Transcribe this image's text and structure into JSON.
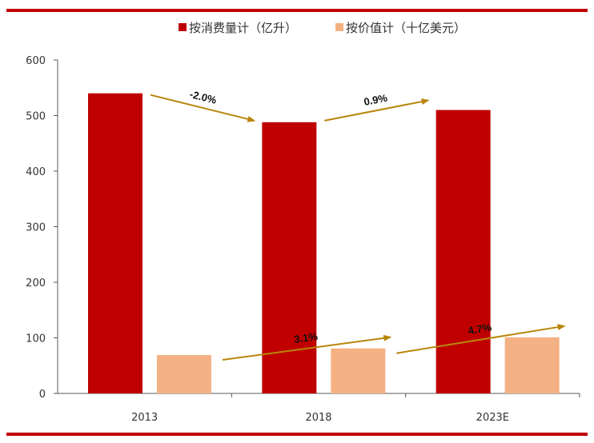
{
  "header": {
    "cut_title": ""
  },
  "colors": {
    "accent_rule": "#c00000",
    "volume": "#c00000",
    "value": "#f4b183",
    "arrow": "#b8860b"
  },
  "chart_data": {
    "type": "bar",
    "categories": [
      "2013",
      "2018",
      "2023E"
    ],
    "series": [
      {
        "name": "按消费量计（亿升）",
        "values": [
          540,
          488,
          510
        ]
      },
      {
        "name": "按价值计（十亿美元）",
        "values": [
          69,
          81,
          101
        ]
      }
    ],
    "ylim": [
      0,
      600
    ],
    "yticks": [
      0,
      100,
      200,
      300,
      400,
      500,
      600
    ],
    "legend_position": "top",
    "grid": false,
    "annotations": [
      {
        "text": "-2.0%",
        "series": 0,
        "from": 0,
        "to": 1
      },
      {
        "text": "0.9%",
        "series": 0,
        "from": 1,
        "to": 2
      },
      {
        "text": "3.1%",
        "series": 1,
        "from": 0,
        "to": 1
      },
      {
        "text": "4.7%",
        "series": 1,
        "from": 1,
        "to": 2
      }
    ]
  }
}
